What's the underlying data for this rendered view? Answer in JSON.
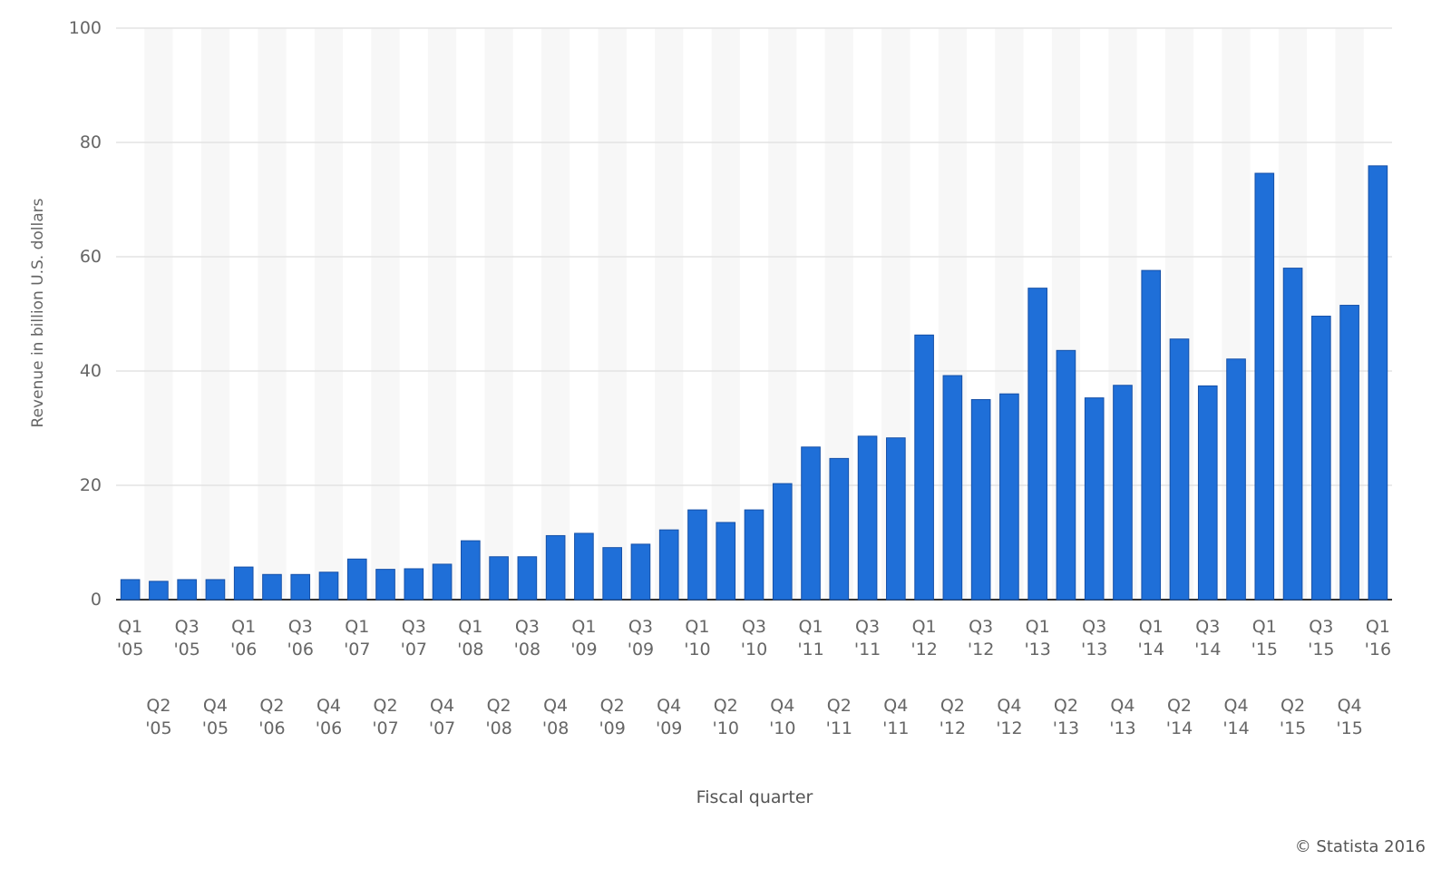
{
  "chart_data": {
    "type": "bar",
    "title": "",
    "xlabel": "Fiscal quarter",
    "ylabel": "Revenue in billion U.S. dollars",
    "ylim": [
      0,
      100
    ],
    "yticks": [
      0,
      20,
      40,
      60,
      80,
      100
    ],
    "grid": true,
    "bar_color": "#1f6fd8",
    "categories": [
      "Q1 '05",
      "Q2 '05",
      "Q3 '05",
      "Q4 '05",
      "Q1 '06",
      "Q2 '06",
      "Q3 '06",
      "Q4 '06",
      "Q1 '07",
      "Q2 '07",
      "Q3 '07",
      "Q4 '07",
      "Q1 '08",
      "Q2 '08",
      "Q3 '08",
      "Q4 '08",
      "Q1 '09",
      "Q2 '09",
      "Q3 '09",
      "Q4 '09",
      "Q1 '10",
      "Q2 '10",
      "Q3 '10",
      "Q4 '10",
      "Q1 '11",
      "Q2 '11",
      "Q3 '11",
      "Q4 '11",
      "Q1 '12",
      "Q2 '12",
      "Q3 '12",
      "Q4 '12",
      "Q1 '13",
      "Q2 '13",
      "Q3 '13",
      "Q4 '13",
      "Q1 '14",
      "Q2 '14",
      "Q3 '14",
      "Q4 '14",
      "Q1 '15",
      "Q2 '15",
      "Q3 '15",
      "Q4 '15",
      "Q1 '16"
    ],
    "values": [
      3.5,
      3.2,
      3.5,
      3.5,
      5.7,
      4.4,
      4.4,
      4.8,
      7.1,
      5.3,
      5.4,
      6.2,
      10.3,
      7.5,
      7.5,
      11.2,
      11.6,
      9.1,
      9.7,
      12.2,
      15.7,
      13.5,
      15.7,
      20.3,
      26.7,
      24.7,
      28.6,
      28.3,
      46.3,
      39.2,
      35.0,
      36.0,
      54.5,
      43.6,
      35.3,
      37.5,
      57.6,
      45.6,
      37.4,
      42.1,
      74.6,
      58.0,
      49.6,
      51.5,
      75.9
    ],
    "credit": "© Statista 2016"
  }
}
